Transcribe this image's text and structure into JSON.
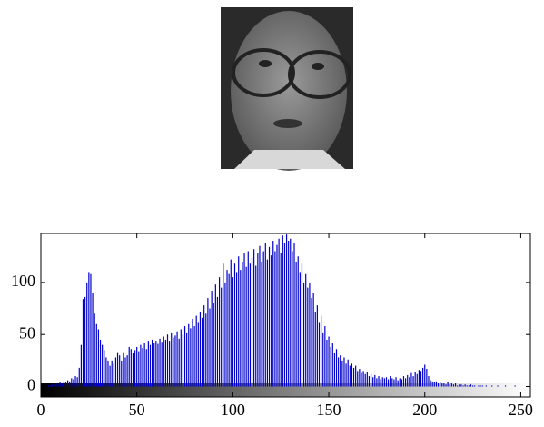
{
  "chart_data": {
    "type": "histogram",
    "x": [
      0,
      1,
      2,
      3,
      4,
      5,
      6,
      7,
      8,
      9,
      10,
      11,
      12,
      13,
      14,
      15,
      16,
      17,
      18,
      19,
      20,
      21,
      22,
      23,
      24,
      25,
      26,
      27,
      28,
      29,
      30,
      31,
      32,
      33,
      34,
      35,
      36,
      37,
      38,
      39,
      40,
      41,
      42,
      43,
      44,
      45,
      46,
      47,
      48,
      49,
      50,
      51,
      52,
      53,
      54,
      55,
      56,
      57,
      58,
      59,
      60,
      61,
      62,
      63,
      64,
      65,
      66,
      67,
      68,
      69,
      70,
      71,
      72,
      73,
      74,
      75,
      76,
      77,
      78,
      79,
      80,
      81,
      82,
      83,
      84,
      85,
      86,
      87,
      88,
      89,
      90,
      91,
      92,
      93,
      94,
      95,
      96,
      97,
      98,
      99,
      100,
      101,
      102,
      103,
      104,
      105,
      106,
      107,
      108,
      109,
      110,
      111,
      112,
      113,
      114,
      115,
      116,
      117,
      118,
      119,
      120,
      121,
      122,
      123,
      124,
      125,
      126,
      127,
      128,
      129,
      130,
      131,
      132,
      133,
      134,
      135,
      136,
      137,
      138,
      139,
      140,
      141,
      142,
      143,
      144,
      145,
      146,
      147,
      148,
      149,
      150,
      151,
      152,
      153,
      154,
      155,
      156,
      157,
      158,
      159,
      160,
      161,
      162,
      163,
      164,
      165,
      166,
      167,
      168,
      169,
      170,
      171,
      172,
      173,
      174,
      175,
      176,
      177,
      178,
      179,
      180,
      181,
      182,
      183,
      184,
      185,
      186,
      187,
      188,
      189,
      190,
      191,
      192,
      193,
      194,
      195,
      196,
      197,
      198,
      199,
      200,
      201,
      202,
      203,
      204,
      205,
      206,
      207,
      208,
      209,
      210,
      211,
      212,
      213,
      214,
      215,
      216,
      217,
      218,
      219,
      220,
      221,
      222,
      223,
      224,
      225,
      226,
      227,
      228,
      229,
      230,
      231,
      232,
      233,
      234,
      235,
      236,
      237,
      238,
      239,
      240,
      241,
      242,
      243,
      244,
      245,
      246,
      247,
      248,
      249,
      250,
      251,
      252,
      253,
      254,
      255
    ],
    "values": [
      0,
      0,
      1,
      0,
      1,
      1,
      2,
      2,
      3,
      2,
      4,
      3,
      5,
      4,
      6,
      5,
      8,
      7,
      10,
      9,
      18,
      40,
      84,
      86,
      100,
      110,
      108,
      90,
      70,
      60,
      55,
      45,
      40,
      35,
      28,
      25,
      20,
      25,
      22,
      28,
      33,
      30,
      25,
      33,
      28,
      30,
      38,
      36,
      32,
      35,
      38,
      34,
      40,
      37,
      42,
      36,
      44,
      40,
      45,
      42,
      44,
      41,
      46,
      43,
      48,
      45,
      50,
      44,
      52,
      47,
      49,
      53,
      46,
      55,
      50,
      58,
      52,
      60,
      56,
      65,
      58,
      68,
      62,
      72,
      66,
      78,
      70,
      85,
      75,
      92,
      80,
      98,
      86,
      105,
      95,
      118,
      100,
      112,
      108,
      122,
      105,
      118,
      110,
      125,
      112,
      120,
      128,
      115,
      130,
      118,
      124,
      132,
      116,
      128,
      135,
      120,
      130,
      138,
      122,
      134,
      126,
      140,
      130,
      136,
      142,
      128,
      145,
      138,
      146,
      140,
      142,
      130,
      138,
      120,
      125,
      110,
      118,
      100,
      108,
      95,
      100,
      85,
      90,
      72,
      78,
      62,
      68,
      52,
      58,
      45,
      48,
      38,
      42,
      32,
      36,
      28,
      30,
      25,
      28,
      22,
      26,
      20,
      22,
      18,
      20,
      15,
      17,
      13,
      15,
      12,
      14,
      10,
      12,
      9,
      11,
      8,
      10,
      7,
      9,
      8,
      9,
      7,
      10,
      8,
      7,
      9,
      6,
      8,
      7,
      10,
      8,
      11,
      9,
      13,
      10,
      14,
      12,
      16,
      15,
      18,
      21,
      17,
      10,
      6,
      5,
      4,
      5,
      3,
      4,
      3,
      3,
      2,
      4,
      2,
      3,
      2,
      3,
      1,
      2,
      2,
      1,
      2,
      1,
      1,
      2,
      1,
      1,
      0,
      1,
      1,
      1,
      0,
      1,
      0,
      0,
      1,
      0,
      0,
      1,
      0,
      0,
      0,
      1,
      0,
      0,
      0,
      0,
      1,
      0,
      0,
      0,
      0,
      0,
      0,
      0,
      0
    ],
    "color": "#0000cc",
    "xlim": [
      0,
      255
    ],
    "ylim": [
      -10,
      147
    ],
    "xticks": [
      0,
      50,
      100,
      150,
      200,
      250
    ],
    "yticks": [
      0,
      50,
      100
    ]
  }
}
